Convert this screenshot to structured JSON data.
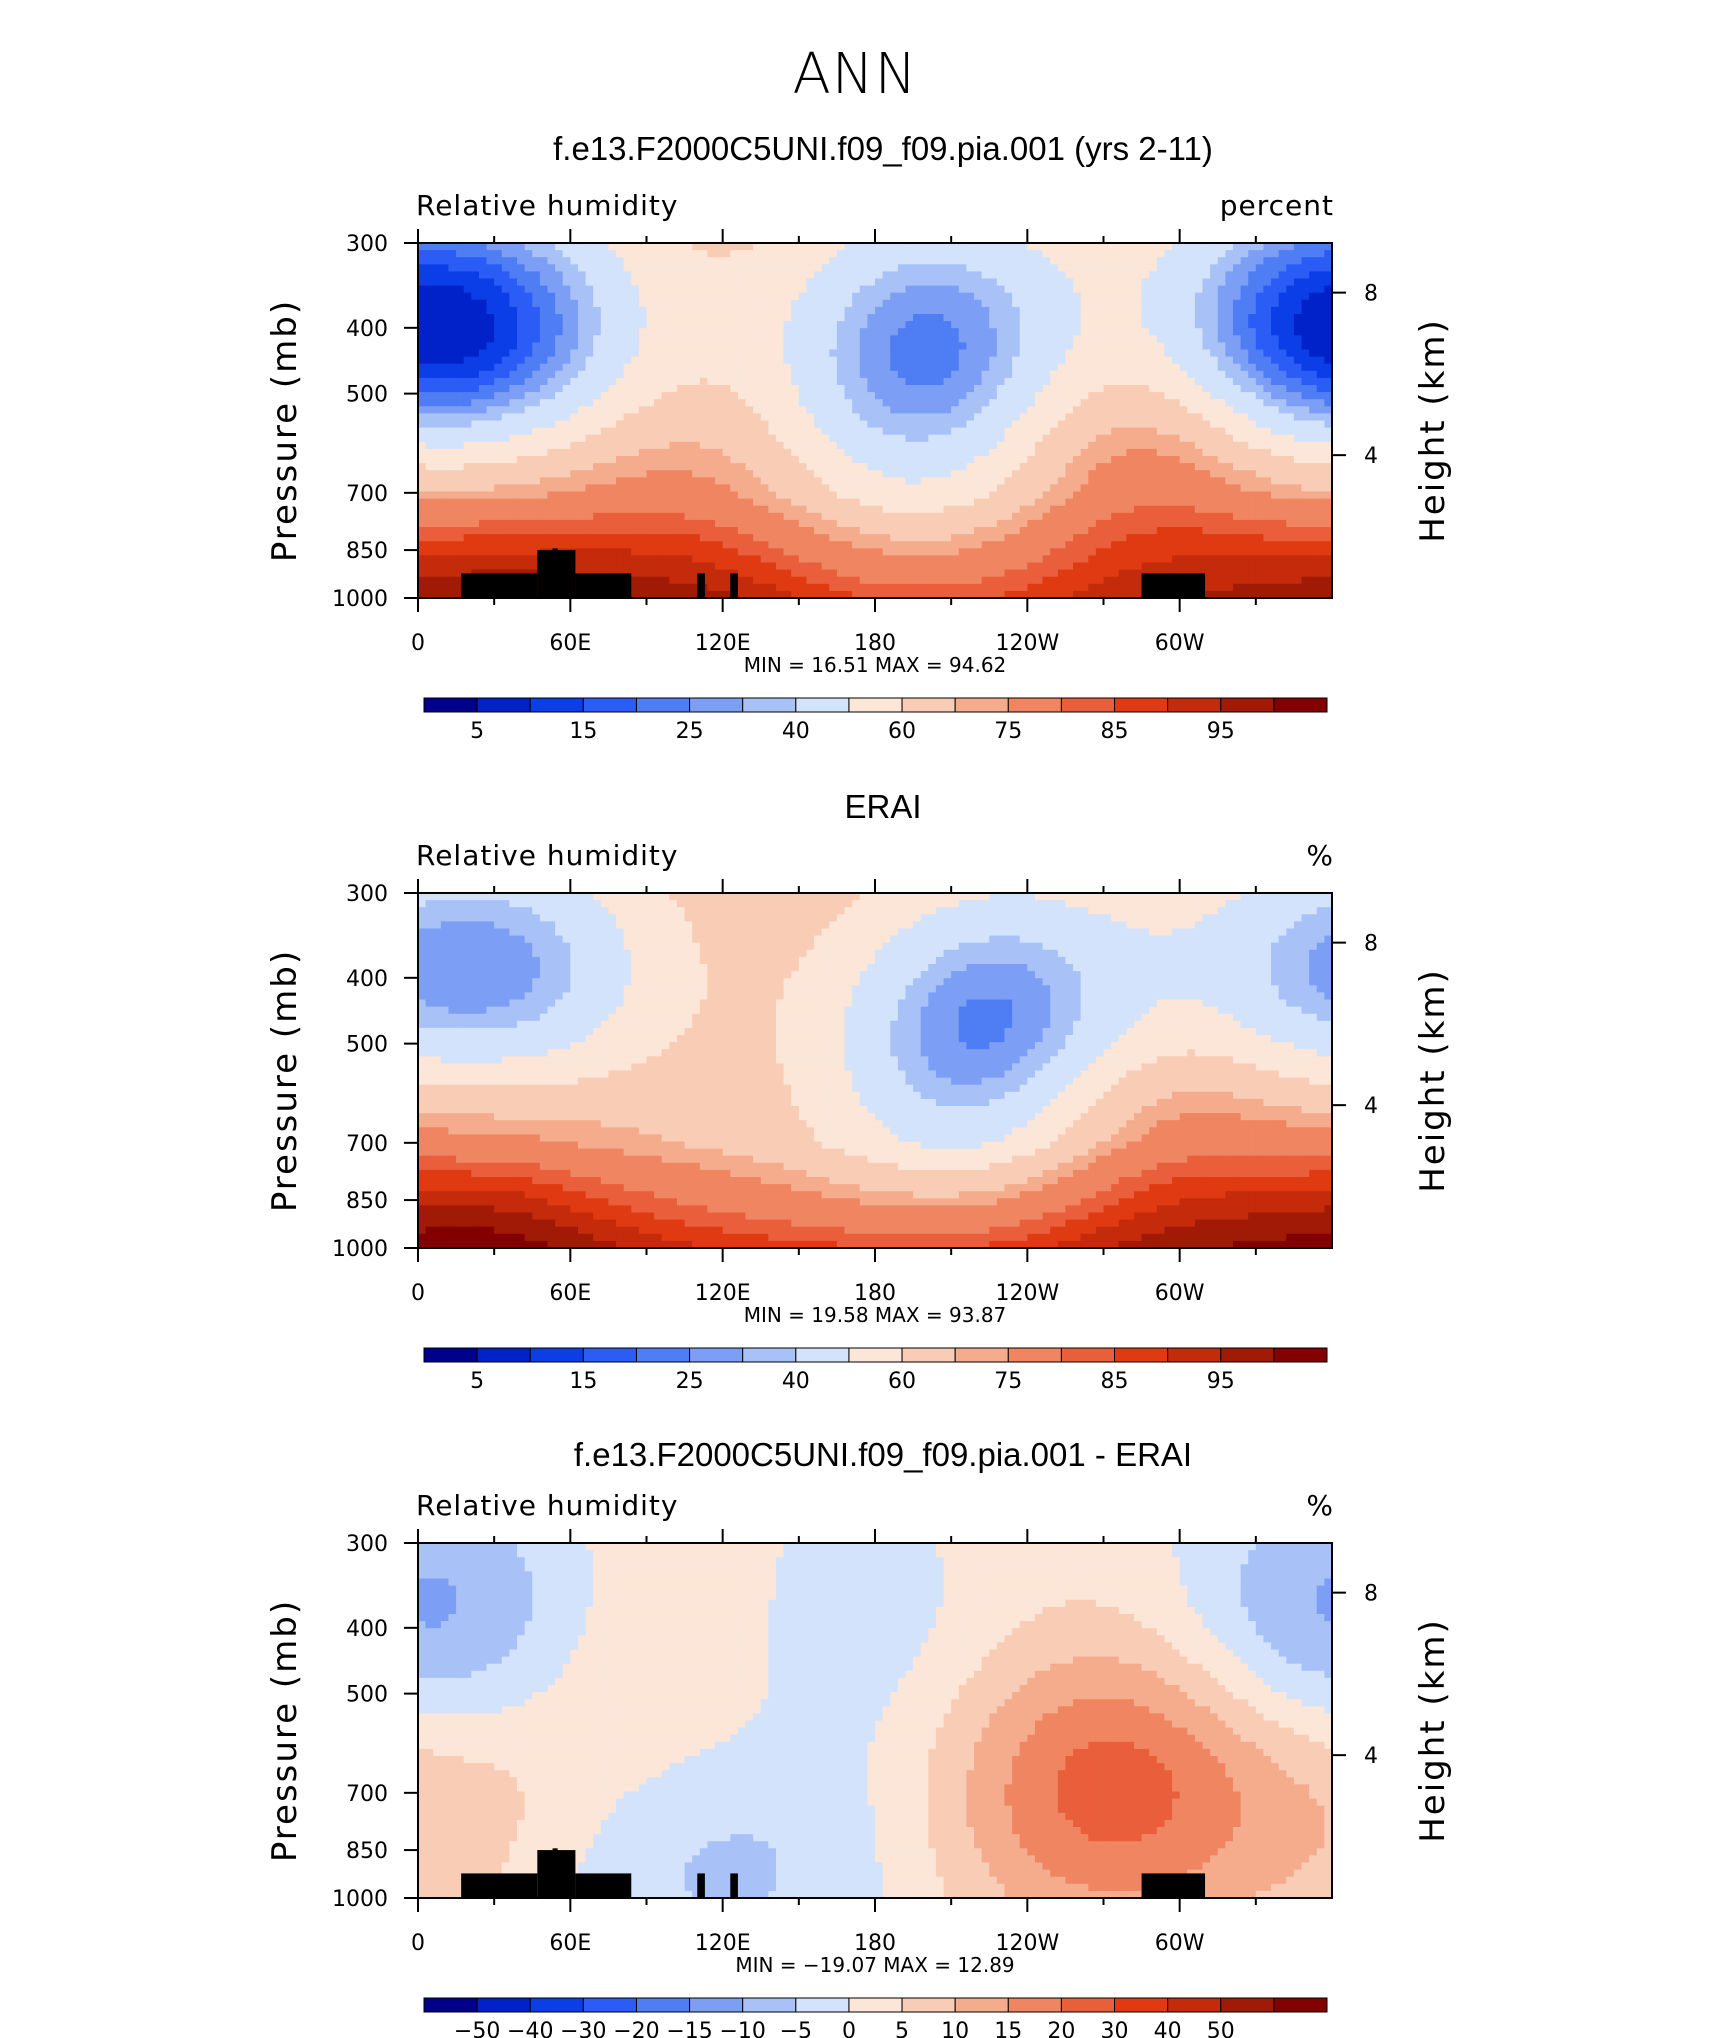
{
  "figure": {
    "title": "ANN"
  },
  "colors": {
    "rh_scale": [
      "#00008b",
      "#0022c8",
      "#0b3ee6",
      "#2b5cf5",
      "#4f7df4",
      "#7c9ef5",
      "#a8c2f7",
      "#d2e3fb",
      "#fbe6d8",
      "#f9ccb6",
      "#f5ac8c",
      "#f08561",
      "#ea5f3b",
      "#e03a13",
      "#c42b0a",
      "#a11a06",
      "#820000"
    ],
    "diff_scale": [
      "#00008b",
      "#0022c8",
      "#0b3ee6",
      "#2b5cf5",
      "#4f7df4",
      "#7c9ef5",
      "#a8c2f7",
      "#d2e3fb",
      "#fbe6d8",
      "#f9ccb6",
      "#f5ac8c",
      "#f08561",
      "#ea5f3b",
      "#e03a13",
      "#c42b0a",
      "#a11a06",
      "#820000"
    ]
  },
  "chart_data": [
    {
      "type": "heatmap",
      "title": "f.e13.F2000C5UNI.f09_f09.pia.001 (yrs 2-11)",
      "variable": "Relative humidity",
      "units": "percent",
      "ylabel": "Pressure (mb)",
      "ylabel_right": "Height (km)",
      "x_ticks": [
        "0",
        "60E",
        "120E",
        "180",
        "120W",
        "60W"
      ],
      "y_ticks": [
        "300",
        "400",
        "500",
        "700",
        "850",
        "1000"
      ],
      "y_right_ticks": [
        "8",
        "4"
      ],
      "ylim": [
        1000,
        300
      ],
      "min_label": "MIN =",
      "max_label": "MAX =",
      "min": "16.51",
      "max": "94.62",
      "colorbar_labels": [
        "5",
        "15",
        "25",
        "40",
        "60",
        "75",
        "85",
        "95"
      ],
      "fields": {
        "base": 60,
        "near_surface": 80,
        "blobs": [
          {
            "lon": 205,
            "p": 410,
            "value": 22
          },
          {
            "lon": 42,
            "p": 410,
            "value": 30
          },
          {
            "lon": 340,
            "p": 410,
            "value": 30
          },
          {
            "lon": 190,
            "p": 560,
            "value": 45
          },
          {
            "lon": 360,
            "p": 420,
            "value": 35
          },
          {
            "lon": 290,
            "p": 650,
            "value": 82
          },
          {
            "lon": 20,
            "p": 800,
            "value": 80
          },
          {
            "lon": 110,
            "p": 820,
            "value": 75
          }
        ]
      }
    },
    {
      "type": "heatmap",
      "title": "ERAI",
      "variable": "Relative humidity",
      "units": "%",
      "ylabel": "Pressure (mb)",
      "ylabel_right": "Height (km)",
      "x_ticks": [
        "0",
        "60E",
        "120E",
        "180",
        "120W",
        "60W"
      ],
      "y_ticks": [
        "300",
        "400",
        "500",
        "700",
        "850",
        "1000"
      ],
      "y_right_ticks": [
        "8",
        "4"
      ],
      "ylim": [
        1000,
        300
      ],
      "min_label": "MIN =",
      "max_label": "MAX =",
      "min": "19.58",
      "max": "93.87",
      "colorbar_labels": [
        "5",
        "15",
        "25",
        "40",
        "60",
        "75",
        "85",
        "95"
      ],
      "fields": {
        "base": 60,
        "near_surface": 84,
        "blobs": [
          {
            "lon": 235,
            "p": 450,
            "value": 24
          },
          {
            "lon": 42,
            "p": 400,
            "value": 28
          },
          {
            "lon": 345,
            "p": 420,
            "value": 33
          },
          {
            "lon": 210,
            "p": 560,
            "value": 42
          },
          {
            "lon": 290,
            "p": 660,
            "value": 82
          },
          {
            "lon": 25,
            "p": 780,
            "value": 82
          }
        ]
      }
    },
    {
      "type": "heatmap",
      "title": "f.e13.F2000C5UNI.f09_f09.pia.001 - ERAI",
      "variable": "Relative humidity",
      "units": "%",
      "ylabel": "Pressure (mb)",
      "ylabel_right": "Height (km)",
      "x_ticks": [
        "0",
        "60E",
        "120E",
        "180",
        "120W",
        "60W"
      ],
      "y_ticks": [
        "300",
        "400",
        "500",
        "700",
        "850",
        "1000"
      ],
      "y_right_ticks": [
        "8",
        "4"
      ],
      "ylim": [
        1000,
        300
      ],
      "min_label": "MIN =",
      "max_label": "MAX =",
      "min": "−19.07",
      "max": "12.89",
      "colorbar_labels": [
        "−50",
        "−40",
        "−30",
        "−20",
        "−15",
        "−10",
        "−5",
        "0",
        "5",
        "10",
        "15",
        "20",
        "30",
        "40",
        "50"
      ],
      "fields": {
        "base": -2,
        "near_surface": -2,
        "blobs": [
          {
            "lon": 10,
            "p": 400,
            "value": -16
          },
          {
            "lon": 165,
            "p": 400,
            "value": -10
          },
          {
            "lon": 350,
            "p": 420,
            "value": -8
          },
          {
            "lon": 260,
            "p": 720,
            "value": 9
          },
          {
            "lon": 285,
            "p": 650,
            "value": 10
          },
          {
            "lon": 15,
            "p": 650,
            "value": 8
          },
          {
            "lon": 90,
            "p": 880,
            "value": -9
          },
          {
            "lon": 150,
            "p": 900,
            "value": -8
          },
          {
            "lon": 105,
            "p": 450,
            "value": 4
          }
        ]
      }
    }
  ]
}
